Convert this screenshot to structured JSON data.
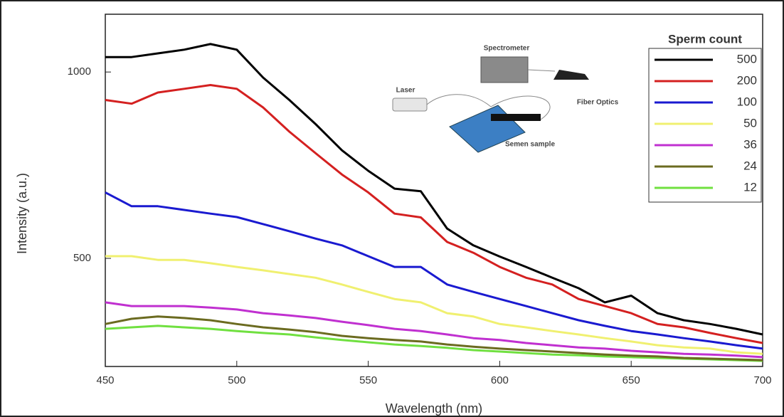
{
  "chart_data": {
    "type": "line",
    "xlabel": "Wavelength (nm)",
    "ylabel": "Intensity (a.u.)",
    "x": [
      450,
      460,
      470,
      480,
      490,
      500,
      510,
      520,
      530,
      540,
      550,
      560,
      570,
      580,
      590,
      600,
      610,
      620,
      630,
      640,
      650,
      660,
      670,
      680,
      690,
      700
    ],
    "xlim": [
      450,
      700
    ],
    "xticks": [
      450,
      500,
      550,
      600,
      650,
      700
    ],
    "ylim": [
      210,
      1155
    ],
    "yticks": [
      500,
      1000
    ],
    "legend_title": "Sperm count",
    "legend_position": "upper right",
    "annotations": [
      "Spectrometer",
      "Laser",
      "Fiber Optics",
      "Semen sample"
    ],
    "series": [
      {
        "name": "500",
        "color": "#000000",
        "values": [
          1040,
          1040,
          1050,
          1060,
          1075,
          1060,
          985,
          925,
          860,
          790,
          735,
          687,
          680,
          580,
          535,
          505,
          477,
          448,
          420,
          382,
          400,
          353,
          334,
          324,
          311,
          296
        ]
      },
      {
        "name": "200",
        "color": "#d42020",
        "values": [
          925,
          915,
          945,
          955,
          965,
          955,
          905,
          840,
          782,
          725,
          677,
          620,
          610,
          544,
          515,
          477,
          448,
          430,
          391,
          372,
          353,
          324,
          315,
          300,
          286,
          273
        ]
      },
      {
        "name": "100",
        "color": "#1a1ad0",
        "values": [
          677,
          640,
          640,
          630,
          620,
          611,
          592,
          573,
          553,
          535,
          506,
          477,
          477,
          430,
          410,
          391,
          372,
          353,
          334,
          319,
          305,
          296,
          286,
          277,
          267,
          258
        ]
      },
      {
        "name": "50",
        "color": "#f0f070",
        "values": [
          506,
          506,
          496,
          496,
          487,
          477,
          468,
          458,
          448,
          430,
          410,
          391,
          382,
          353,
          344,
          324,
          315,
          305,
          296,
          286,
          277,
          267,
          261,
          258,
          248,
          244
        ]
      },
      {
        "name": "36",
        "color": "#c030d0",
        "values": [
          382,
          372,
          372,
          372,
          368,
          363,
          353,
          347,
          340,
          330,
          321,
          311,
          305,
          296,
          286,
          281,
          273,
          267,
          261,
          258,
          252,
          248,
          244,
          242,
          239,
          235
        ]
      },
      {
        "name": "24",
        "color": "#6b6b20",
        "values": [
          324,
          338,
          344,
          340,
          334,
          324,
          315,
          309,
          302,
          292,
          286,
          281,
          277,
          269,
          263,
          258,
          254,
          250,
          246,
          242,
          239,
          237,
          233,
          231,
          229,
          227
        ]
      },
      {
        "name": "12",
        "color": "#70e040",
        "values": [
          311,
          315,
          319,
          315,
          311,
          305,
          300,
          296,
          288,
          281,
          275,
          269,
          265,
          260,
          254,
          250,
          246,
          242,
          240,
          237,
          235,
          233,
          231,
          229,
          227,
          225
        ]
      }
    ]
  }
}
